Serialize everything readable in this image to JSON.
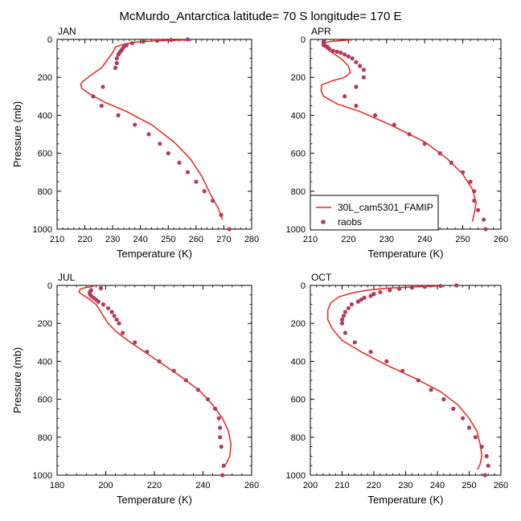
{
  "title": "McMurdo_Antarctica  latitude= 70 S longitude= 170 E",
  "colors": {
    "model": "#e8261c",
    "obs": "#b23a5e",
    "axis": "#000000"
  },
  "legend": {
    "model_label": "30L_cam5301_FAMIP",
    "obs_label": "raobs",
    "placement": "inside APR panel, lower-left"
  },
  "chart_data": [
    {
      "type": "line",
      "panel": "JAN",
      "xlabel": "Temperature (K)",
      "ylabel": "Pressure (mb)",
      "xlim": [
        210,
        280
      ],
      "ylim": [
        1000,
        0
      ],
      "xticks": [
        "210",
        "220",
        "230",
        "240",
        "250",
        "260",
        "270",
        "280"
      ],
      "yticks": [
        "0",
        "200",
        "400",
        "600",
        "800",
        "1000"
      ],
      "series": [
        {
          "name": "30L_cam5301_FAMIP",
          "style": "line",
          "x": [
            258,
            245,
            238,
            234,
            231,
            230,
            228,
            226,
            222,
            219,
            218.5,
            219,
            222,
            227,
            235,
            244,
            252,
            258,
            262,
            265,
            268,
            269.5
          ],
          "y": [
            2,
            8,
            15,
            25,
            40,
            70,
            110,
            150,
            190,
            225,
            240,
            260,
            290,
            330,
            380,
            450,
            540,
            630,
            720,
            810,
            890,
            950
          ]
        },
        {
          "name": "raobs",
          "style": "markers",
          "x": [
            257,
            251,
            246,
            241,
            237,
            235,
            234,
            233.5,
            233,
            232.5,
            232,
            231.5,
            231.5,
            231,
            226.5,
            223,
            226,
            232,
            238,
            243,
            247,
            250,
            254,
            257,
            260,
            263,
            266,
            269,
            272
          ],
          "y": [
            0,
            3,
            7,
            12,
            20,
            30,
            40,
            50,
            60,
            70,
            80,
            100,
            125,
            150,
            250,
            300,
            350,
            400,
            450,
            500,
            550,
            600,
            650,
            700,
            750,
            800,
            850,
            925,
            1000
          ]
        }
      ]
    },
    {
      "type": "line",
      "panel": "APR",
      "xlabel": "Temperature (K)",
      "ylabel": "",
      "xlim": [
        210,
        260
      ],
      "ylim": [
        1000,
        0
      ],
      "xticks": [
        "210",
        "220",
        "230",
        "240",
        "250",
        "260"
      ],
      "yticks": [
        "0",
        "200",
        "400",
        "600",
        "800",
        "1000"
      ],
      "series": [
        {
          "name": "30L_cam5301_FAMIP",
          "style": "line",
          "x": [
            221,
            218,
            215,
            213.5,
            213.5,
            215,
            218,
            220,
            220.5,
            219,
            215.5,
            213,
            212.8,
            213.5,
            217,
            223,
            231,
            240,
            246,
            250,
            252.5,
            253.5,
            253,
            252.5
          ],
          "y": [
            2,
            6,
            12,
            20,
            35,
            60,
            100,
            140,
            175,
            200,
            220,
            240,
            270,
            300,
            340,
            380,
            450,
            540,
            630,
            710,
            790,
            860,
            920,
            960
          ]
        },
        {
          "name": "raobs",
          "style": "markers",
          "x": [
            213.5,
            213.5,
            213.5,
            213.5,
            213.5,
            214,
            214.5,
            215,
            216,
            217,
            218,
            219,
            220,
            221,
            222,
            223,
            224,
            224,
            222,
            219,
            222,
            227,
            232,
            236,
            240,
            244,
            247,
            250,
            252,
            253,
            253,
            254,
            255.5,
            256
          ],
          "y": [
            10,
            15,
            20,
            25,
            30,
            35,
            40,
            50,
            60,
            65,
            70,
            80,
            90,
            100,
            120,
            140,
            160,
            200,
            250,
            300,
            350,
            400,
            450,
            500,
            550,
            600,
            650,
            700,
            750,
            800,
            850,
            900,
            950,
            1000
          ]
        }
      ]
    },
    {
      "type": "line",
      "panel": "JUL",
      "xlabel": "Temperature (K)",
      "ylabel": "Pressure (mb)",
      "xlim": [
        180,
        260
      ],
      "ylim": [
        1000,
        0
      ],
      "xticks": [
        "180",
        "200",
        "220",
        "240",
        "260"
      ],
      "yticks": [
        "0",
        "200",
        "400",
        "600",
        "800",
        "1000"
      ],
      "series": [
        {
          "name": "30L_cam5301_FAMIP",
          "style": "line",
          "x": [
            195,
            192,
            189.5,
            189,
            190.5,
            193,
            196,
            198,
            199.5,
            201,
            204,
            209,
            216,
            224,
            232,
            239,
            244,
            248,
            250.5,
            251.5,
            251,
            249.5,
            248
          ],
          "y": [
            5,
            10,
            20,
            35,
            50,
            70,
            100,
            140,
            170,
            200,
            240,
            290,
            350,
            420,
            490,
            560,
            630,
            700,
            770,
            840,
            900,
            940,
            960
          ]
        },
        {
          "name": "raobs",
          "style": "markers",
          "x": [
            198,
            194,
            193.5,
            193.5,
            194,
            195,
            196,
            197,
            199,
            201,
            202.5,
            203.5,
            204.5,
            205.5,
            207,
            212,
            217,
            222,
            228,
            233,
            238,
            242,
            245,
            246.5,
            247,
            247,
            247.5,
            248.5,
            248
          ],
          "y": [
            15,
            25,
            35,
            45,
            55,
            65,
            75,
            85,
            100,
            120,
            140,
            160,
            180,
            200,
            250,
            300,
            350,
            400,
            450,
            500,
            550,
            600,
            650,
            700,
            750,
            800,
            850,
            950,
            1000
          ]
        }
      ]
    },
    {
      "type": "line",
      "panel": "OCT",
      "xlabel": "Temperature (K)",
      "ylabel": "",
      "xlim": [
        200,
        260
      ],
      "ylim": [
        1000,
        0
      ],
      "xticks": [
        "200",
        "210",
        "220",
        "230",
        "240",
        "250",
        "260"
      ],
      "yticks": [
        "0",
        "200",
        "400",
        "600",
        "800",
        "1000"
      ],
      "series": [
        {
          "name": "30L_cam5301_FAMIP",
          "style": "line",
          "x": [
            242,
            232,
            224,
            218,
            213,
            209,
            206.5,
            205.5,
            205.5,
            207,
            210,
            216,
            224,
            233,
            241,
            246.5,
            250,
            252.5,
            253.5,
            254,
            253.5,
            253,
            252.5
          ],
          "y": [
            2,
            8,
            15,
            25,
            40,
            60,
            90,
            130,
            180,
            230,
            290,
            350,
            420,
            490,
            560,
            630,
            700,
            770,
            840,
            900,
            940,
            960,
            970
          ]
        },
        {
          "name": "raobs",
          "style": "markers",
          "x": [
            246,
            241,
            236,
            232,
            228,
            225,
            222,
            220,
            219,
            217,
            216,
            215,
            213,
            212,
            211,
            210.5,
            210,
            210,
            211,
            214,
            219,
            224,
            229,
            234,
            238,
            242,
            245,
            248,
            250,
            252,
            254,
            255.5,
            256,
            255
          ],
          "y": [
            0,
            3,
            7,
            12,
            18,
            25,
            35,
            45,
            55,
            65,
            75,
            85,
            100,
            120,
            140,
            160,
            180,
            200,
            250,
            300,
            350,
            400,
            450,
            500,
            550,
            600,
            650,
            700,
            750,
            800,
            850,
            900,
            950,
            1000
          ]
        }
      ]
    }
  ]
}
